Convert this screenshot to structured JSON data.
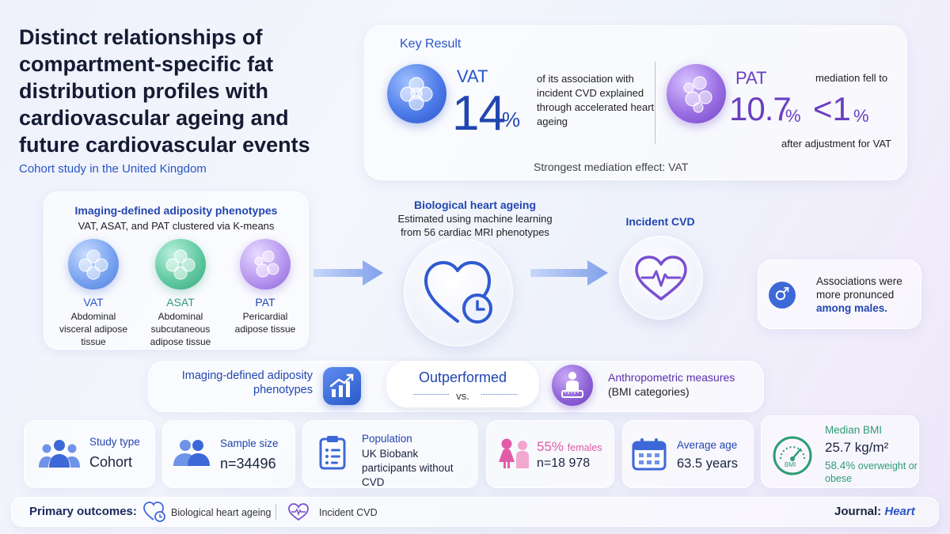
{
  "header": {
    "title": "Distinct relationships of compartment-specific fat distribution profiles with cardiovascular ageing and future cardiovascular events",
    "subtitle": "Cohort study in the United Kingdom"
  },
  "key_result": {
    "label": "Key Result",
    "vat": {
      "name": "VAT",
      "value": "14",
      "unit": "%",
      "description": "of its association with incident CVD explained through accelerated heart ageing"
    },
    "pat": {
      "name": "PAT",
      "value": "10.7",
      "unit": "%",
      "after_symbol": "<1",
      "after_unit": "%",
      "text_top": "mediation fell to",
      "text_bottom": "after adjustment for VAT"
    },
    "strongest": "Strongest mediation effect: VAT"
  },
  "phenotypes": {
    "title": "Imaging-defined adiposity phenotypes",
    "subtitle": "VAT, ASAT, and PAT clustered via K-means",
    "items": [
      {
        "name": "VAT",
        "description": "Abdominal visceral adipose tissue",
        "color": "#2856c6"
      },
      {
        "name": "ASAT",
        "description": "Abdominal subcutaneous adipose tissue",
        "color": "#2e9c74"
      },
      {
        "name": "PAT",
        "description": "Pericardial adipose tissue",
        "color": "#2246b0"
      }
    ]
  },
  "heart_ageing": {
    "title": "Biological heart ageing",
    "subtitle": "Estimated using machine learning from 56 cardiac MRI phenotypes"
  },
  "incident_cvd": {
    "title": "Incident CVD"
  },
  "sex_note": {
    "text": "Associations were more pronunced",
    "emphasis": "among males."
  },
  "comparison": {
    "left": "Imaging-defined adiposity phenotypes",
    "center": "Outperformed",
    "vs": "vs.",
    "right_title": "Anthropometric measures",
    "right_sub": "(BMI categories)"
  },
  "stats": {
    "study_type": {
      "label": "Study type",
      "value": "Cohort"
    },
    "sample_size": {
      "label": "Sample size",
      "value": "n=34496"
    },
    "population": {
      "label": "Population",
      "value": "UK Biobank participants without CVD"
    },
    "females": {
      "percent": "55%",
      "label": "females",
      "value": "n=18 978"
    },
    "average_age": {
      "label": "Average age",
      "value": "63.5 years"
    },
    "bmi": {
      "label": "Median BMI",
      "value": "25.7 kg/m²",
      "gauge_text": "BMI",
      "overweight_pct": "58.4%",
      "overweight_text": "overweight or obese"
    }
  },
  "footer": {
    "label": "Primary outcomes:",
    "outcome1": "Biological heart ageing",
    "outcome2": "Incident CVD",
    "journal_label": "Journal:",
    "journal_name": "Heart"
  },
  "colors": {
    "accent_blue": "#2246b0",
    "accent_purple": "#6a3fc0",
    "accent_green": "#2e9c74",
    "accent_pink": "#e05ca8"
  },
  "icons": [
    "fat-cells-icon",
    "heart-clock-icon",
    "heart-pulse-icon",
    "male-icon",
    "rising-chart-icon",
    "person-scale-icon",
    "people-icon",
    "clipboard-icon",
    "female-male-icon",
    "calendar-icon",
    "gauge-icon"
  ]
}
